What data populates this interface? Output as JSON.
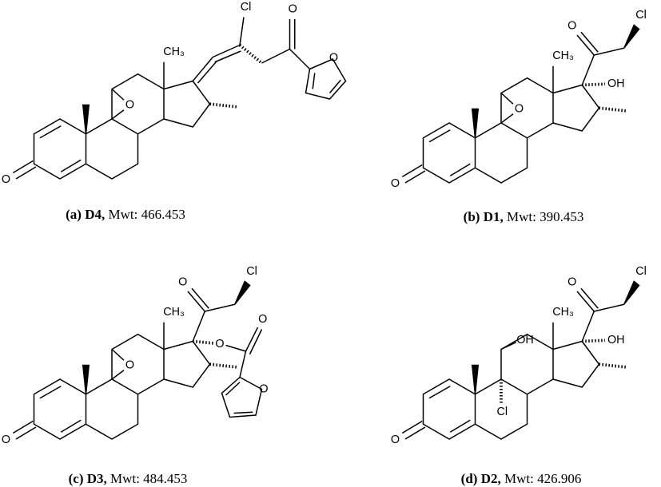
{
  "panels": [
    {
      "atoms": [
        "O",
        "O",
        "CH₃",
        "Cl",
        "O",
        "O"
      ],
      "caption": {
        "label": "(a) D4,",
        "mwt_label": "Mwt:",
        "mwt": 466.453
      }
    },
    {
      "atoms": [
        "O",
        "O",
        "CH₃",
        "O",
        "Cl",
        "OH"
      ],
      "caption": {
        "label": "(b) D1,",
        "mwt_label": "Mwt:",
        "mwt": 390.453
      }
    },
    {
      "atoms": [
        "O",
        "O",
        "CH₃",
        "O",
        "Cl",
        "O",
        "O",
        "O"
      ],
      "caption": {
        "label": "(c) D3,",
        "mwt_label": "Mwt:",
        "mwt": 484.453
      }
    },
    {
      "atoms": [
        "O",
        "OH",
        "Cl",
        "CH₃",
        "O",
        "Cl",
        "OH"
      ],
      "caption": {
        "label": "(d) D2,",
        "mwt_label": "Mwt:",
        "mwt": 426.906
      }
    }
  ]
}
